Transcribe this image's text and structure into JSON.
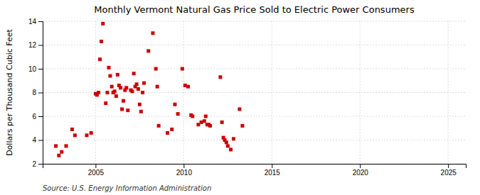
{
  "chart_data": {
    "type": "scatter",
    "title": "Monthly Vermont Natural Gas Price Sold to Electric Power Consumers",
    "ylabel": "Dollars per Thousand Cubic Feet",
    "annotations": [
      "Source: U.S. Energy Information Administration"
    ],
    "color": "#cc0000",
    "marker": "square",
    "grid": true,
    "xlim": [
      2002,
      2026
    ],
    "ylim": [
      2,
      14
    ],
    "xticks": [
      2005,
      2010,
      2015,
      2020,
      2025
    ],
    "yticks": [
      2,
      4,
      6,
      8,
      10,
      12,
      14
    ],
    "x": [
      2002.75,
      2002.92,
      2003.08,
      2003.33,
      2003.67,
      2003.83,
      2004.5,
      2004.75,
      2005.0,
      2005.08,
      2005.17,
      2005.25,
      2005.33,
      2005.42,
      2005.58,
      2005.67,
      2005.75,
      2005.83,
      2005.92,
      2006.0,
      2006.08,
      2006.17,
      2006.25,
      2006.33,
      2006.42,
      2006.5,
      2006.58,
      2006.67,
      2006.75,
      2006.83,
      2007.0,
      2007.08,
      2007.17,
      2007.25,
      2007.33,
      2007.42,
      2007.5,
      2007.58,
      2007.67,
      2007.75,
      2008.0,
      2008.25,
      2008.42,
      2008.5,
      2008.58,
      2009.08,
      2009.33,
      2009.5,
      2009.67,
      2009.92,
      2010.08,
      2010.25,
      2010.42,
      2010.5,
      2010.83,
      2011.0,
      2011.17,
      2011.25,
      2011.33,
      2011.42,
      2011.5,
      2012.08,
      2012.17,
      2012.25,
      2012.33,
      2012.42,
      2012.5,
      2012.67,
      2012.83,
      2013.17,
      2013.33
    ],
    "values": [
      3.5,
      2.7,
      3.0,
      3.5,
      4.9,
      4.4,
      4.4,
      4.6,
      7.9,
      7.8,
      8.0,
      10.8,
      12.3,
      13.8,
      7.1,
      8.0,
      10.1,
      9.4,
      8.5,
      8.0,
      8.1,
      7.7,
      9.5,
      8.6,
      8.4,
      6.6,
      7.3,
      8.2,
      8.4,
      6.5,
      8.2,
      8.1,
      9.6,
      8.5,
      8.7,
      8.3,
      7.0,
      6.4,
      8.0,
      8.8,
      11.5,
      13.0,
      10.0,
      8.5,
      5.2,
      4.6,
      4.9,
      7.0,
      6.2,
      10.0,
      8.6,
      8.5,
      6.1,
      6.0,
      5.3,
      5.5,
      5.6,
      6.0,
      5.3,
      5.3,
      5.2,
      9.3,
      5.5,
      4.2,
      4.0,
      3.8,
      3.5,
      3.2,
      4.1,
      6.6,
      5.2
    ]
  }
}
